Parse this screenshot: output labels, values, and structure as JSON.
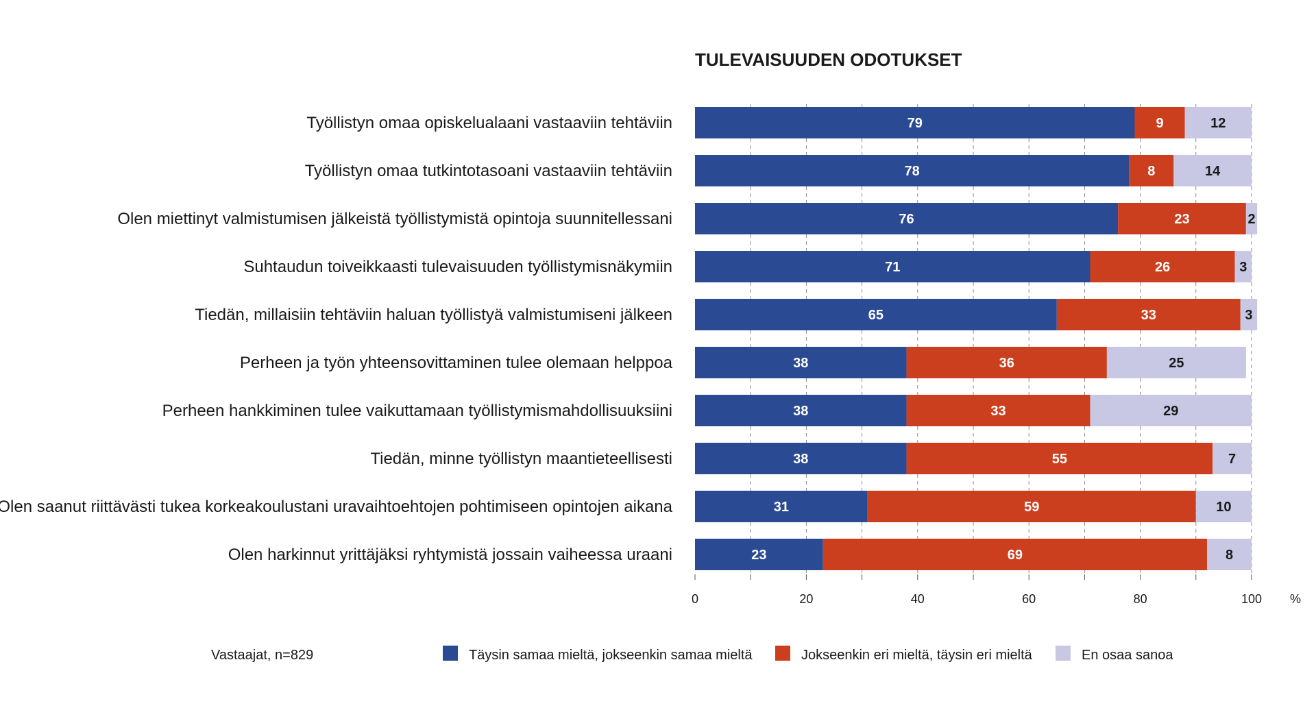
{
  "chart_data": {
    "type": "bar",
    "orientation": "horizontal",
    "stacked": true,
    "title": "TULEVAISUUDEN ODOTUKSET",
    "xlabel": "",
    "ylabel": "",
    "unit": "%",
    "xlim": [
      0,
      100
    ],
    "xticks": [
      "0",
      "20",
      "40",
      "60",
      "80",
      "100"
    ],
    "grid": true,
    "legend_position": "bottom",
    "note": "Vastaajat, n=829",
    "categories": [
      "Työllistyn omaa opiskelualaani vastaaviin tehtäviin",
      "Työllistyn omaa tutkintotasoani vastaaviin tehtäviin",
      "Olen miettinyt valmistumisen jälkeistä työllistymistä opintoja suunnitellessani",
      "Suhtaudun toiveikkaasti tulevaisuuden työllistymisnäkymiin",
      "Tiedän, millaisiin tehtäviin haluan työllistyä valmistumiseni jälkeen",
      "Perheen ja työn yhteensovittaminen tulee olemaan helppoa",
      "Perheen hankkiminen tulee vaikuttamaan työllistymismahdollisuuksiini",
      "Tiedän, minne työllistyn maantieteellisesti",
      "Olen saanut riittävästi tukea korkeakoulustani uravaihtoehtojen pohtimiseen opintojen aikana",
      "Olen harkinnut yrittäjäksi ryhtymistä jossain vaiheessa uraani"
    ],
    "series": [
      {
        "name": "Täysin samaa mieltä, jokseenkin samaa mieltä",
        "color": "#2a4a94",
        "values": [
          79,
          78,
          76,
          71,
          65,
          38,
          38,
          38,
          31,
          23
        ]
      },
      {
        "name": "Jokseenkin eri mieltä, täysin eri mieltä",
        "color": "#cc3f1e",
        "values": [
          9,
          8,
          23,
          26,
          33,
          36,
          33,
          55,
          59,
          69
        ]
      },
      {
        "name": "En osaa sanoa",
        "color": "#c8c8e4",
        "values": [
          12,
          14,
          2,
          3,
          3,
          25,
          29,
          7,
          10,
          8
        ]
      }
    ]
  }
}
